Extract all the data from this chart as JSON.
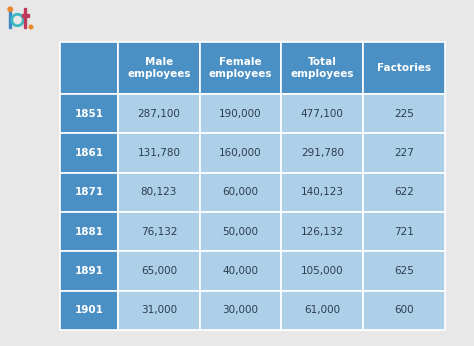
{
  "years": [
    "1851",
    "1861",
    "1871",
    "1881",
    "1891",
    "1901"
  ],
  "col_headers": [
    "Male\nemployees",
    "Female\nemployees",
    "Total\nemployees",
    "Factories"
  ],
  "row_data": [
    [
      "287,100",
      "190,000",
      "477,100",
      "225"
    ],
    [
      "131,780",
      "160,000",
      "291,780",
      "227"
    ],
    [
      "80,123",
      "60,000",
      "140,123",
      "622"
    ],
    [
      "76,132",
      "50,000",
      "126,132",
      "721"
    ],
    [
      "65,000",
      "40,000",
      "105,000",
      "625"
    ],
    [
      "31,000",
      "30,000",
      "61,000",
      "600"
    ]
  ],
  "header_bg": "#4A90C4",
  "year_bg": "#4A90C4",
  "data_bg": "#AECFE8",
  "header_text_color": "#ffffff",
  "year_text_color": "#ffffff",
  "data_text_color": "#2c3e50",
  "bg_color": "#e8e8e8",
  "cell_edge_color": "#ffffff",
  "logo_orange": "#E8872A",
  "logo_blue": "#3B8AC4",
  "logo_teal": "#3EB8C0",
  "logo_red": "#C0395A",
  "header_fontsize": 7.5,
  "data_fontsize": 7.5,
  "year_fontsize": 7.5
}
